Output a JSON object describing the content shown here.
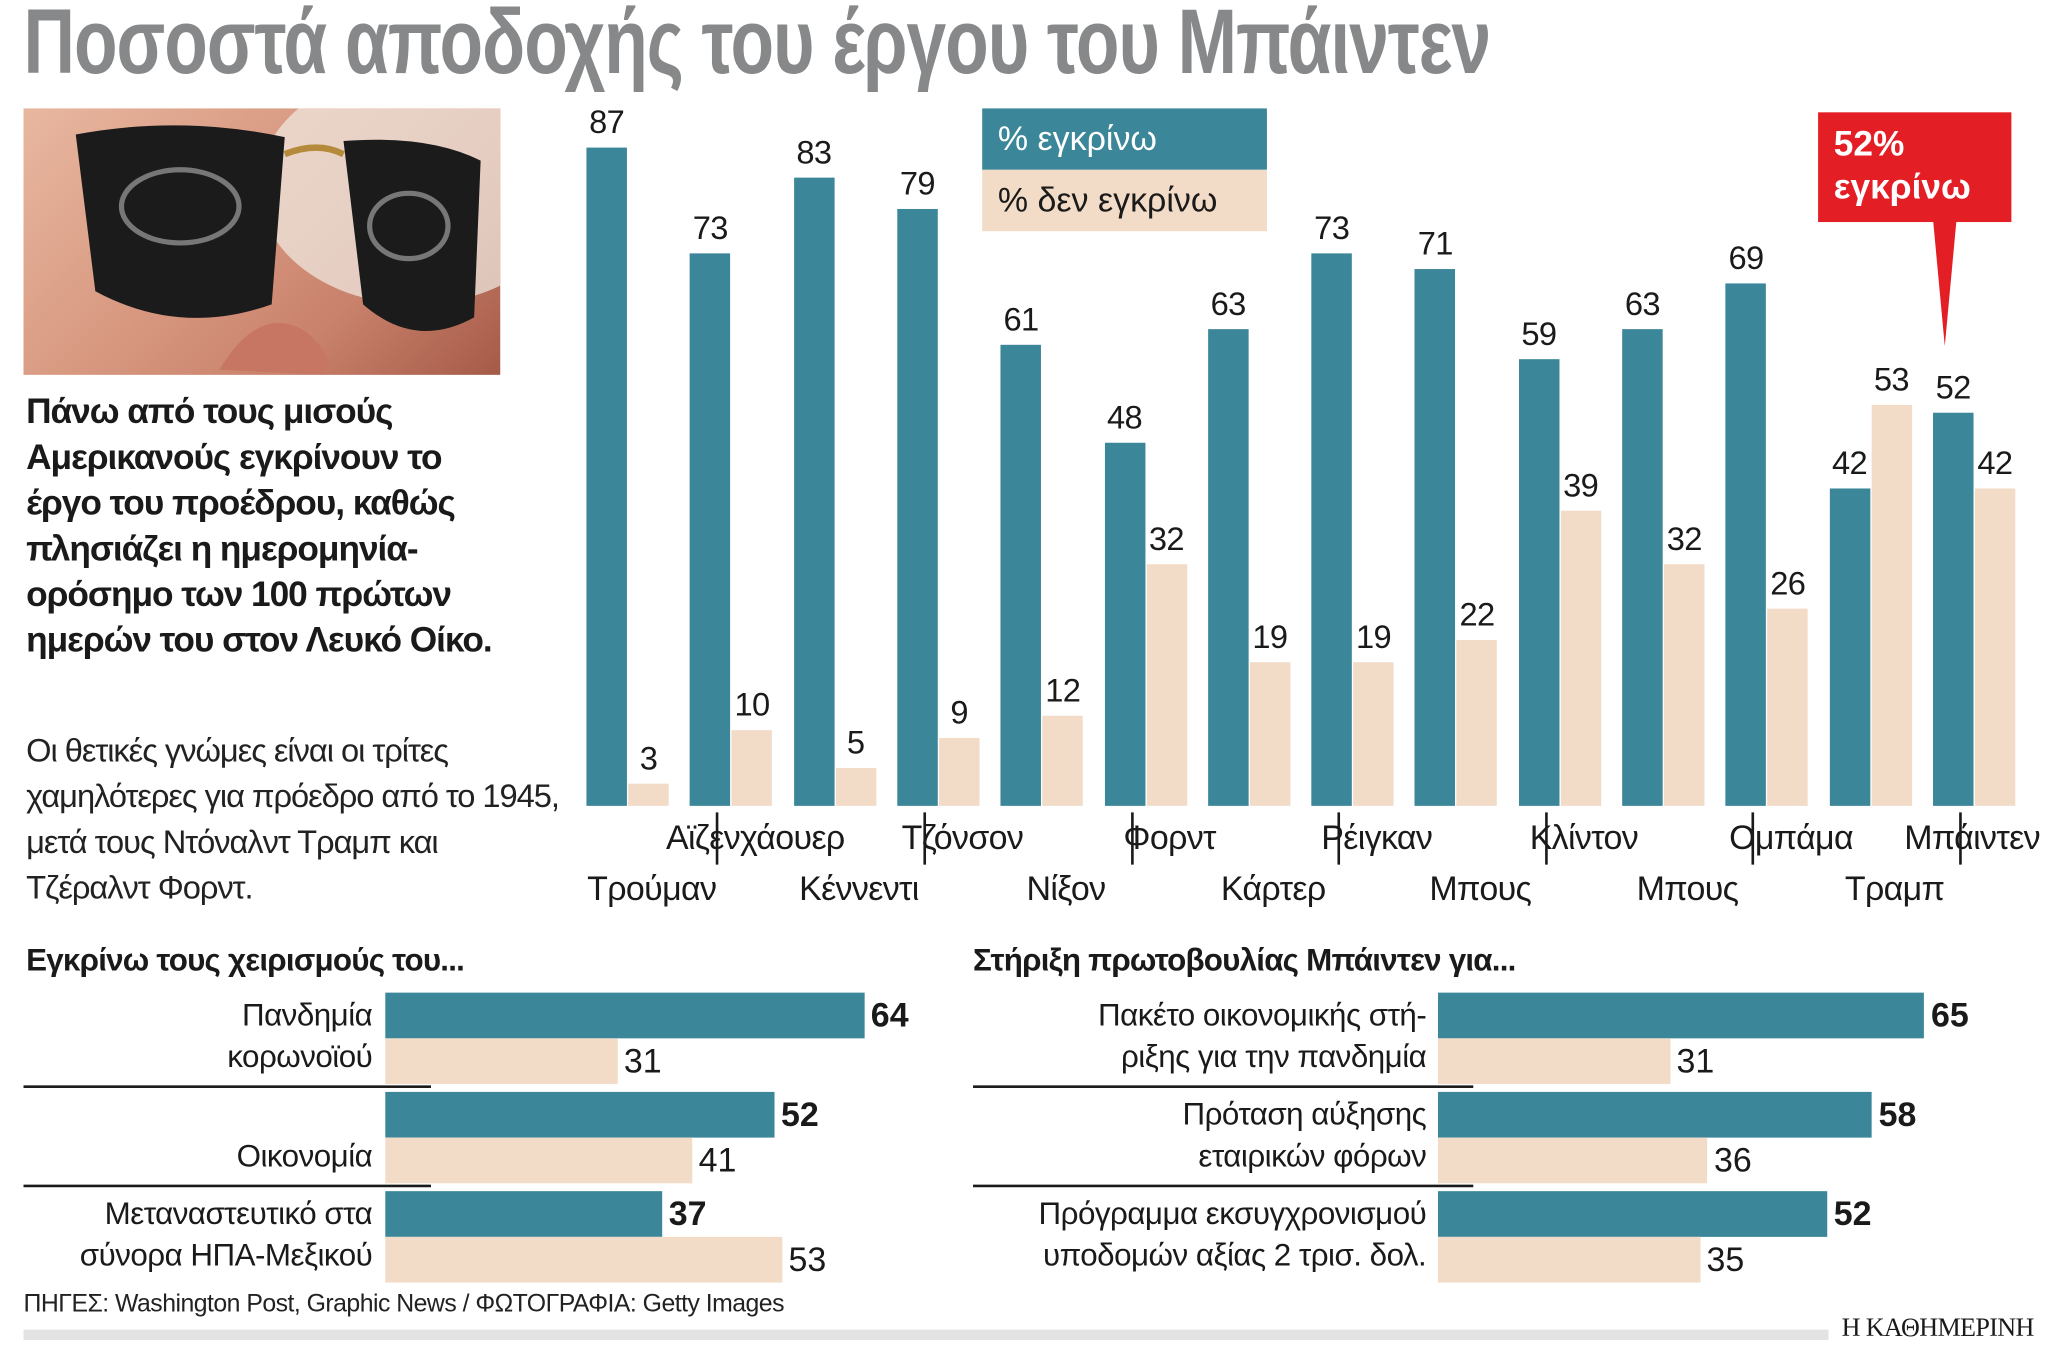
{
  "title": "Ποσοστά αποδοχής του έργου του Μπάιντεν",
  "lead": "Πάνω από τους μισούς Αμερικανούς εγκρίνουν το έργο του προέδρου, καθώς πλησιάζει η ημερομηνία-ορόσημο των 100 πρώτων ημερών του στον Λευκό Οίκο.",
  "description": "Οι θετικές γνώμες είναι οι τρίτες χαμηλότερες για πρόεδρο από το 1945, μετά τους Ντόναλντ Τραμπ και Τζέραλντ Φορντ.",
  "callout": {
    "line1": "52%",
    "line2": "εγκρίνω"
  },
  "colors": {
    "approve": "#3b8698",
    "disapprove": "#f2dcc8",
    "callout": "#e31e24",
    "title": "#87888a"
  },
  "chart_data": [
    {
      "type": "bar",
      "categories": [
        "Τρούμαν",
        "Αϊζενχάουερ",
        "Κέννεντι",
        "Τζόνσον",
        "Νίξον",
        "Φορντ",
        "Κάρτερ",
        "Ρέιγκαν",
        "Μπους",
        "Κλίντον",
        "Μπους",
        "Ομπάμα",
        "Τραμπ",
        "Μπάιντεν"
      ],
      "series": [
        {
          "name": "% εγκρίνω",
          "values": [
            87,
            73,
            83,
            79,
            61,
            48,
            63,
            73,
            71,
            59,
            63,
            69,
            42,
            52
          ]
        },
        {
          "name": "% δεν εγκρίνω",
          "values": [
            3,
            10,
            5,
            9,
            12,
            32,
            19,
            19,
            22,
            39,
            32,
            26,
            53,
            42
          ]
        }
      ],
      "ylim": [
        0,
        90
      ],
      "grid": false,
      "legend": "top-center"
    },
    {
      "type": "bar",
      "orientation": "horizontal",
      "title": "Εγκρίνω τους χειρισμούς του...",
      "categories": [
        "Πανδημία κορωνοϊού",
        "Οικονομία",
        "Μεταναστευτικό στα σύνορα ΗΠΑ-Μεξικού"
      ],
      "category_lines": [
        [
          "Πανδημία",
          "κορωνοϊού"
        ],
        [
          "",
          "Οικονομία"
        ],
        [
          "Μεταναστευτικό στα",
          "σύνορα ΗΠΑ-Μεξικού"
        ]
      ],
      "series": [
        {
          "values": [
            64,
            52,
            37
          ]
        },
        {
          "values": [
            31,
            41,
            53
          ]
        }
      ]
    },
    {
      "type": "bar",
      "orientation": "horizontal",
      "title": "Στήριξη πρωτοβουλίας Μπάιντεν για...",
      "categories": [
        "Πακέτο οικονομικής στήριξης για την πανδημία",
        "Πρόταση αύξησης εταιρικών φόρων",
        "Πρόγραμμα εκσυγχρονισμού υποδομών αξίας 2 τρισ. δολ."
      ],
      "category_lines": [
        [
          "Πακέτο οικονομικής στή-",
          "ριξης για την πανδημία"
        ],
        [
          "Πρόταση αύξησης",
          "εταιρικών φόρων"
        ],
        [
          "Πρόγραμμα εκσυγχρονισμού",
          "υποδομών αξίας 2 τρισ. δολ."
        ]
      ],
      "series": [
        {
          "values": [
            65,
            58,
            52
          ]
        },
        {
          "values": [
            31,
            36,
            35
          ]
        }
      ]
    }
  ],
  "source": "ΠΗΓΕΣ: Washington Post, Graphic News / ΦΩΤΟΓΡΑΦΙΑ: Getty Images",
  "logo": "Η ΚΑΘΗΜΕΡΙΝΗ",
  "photo_icon": "man-with-aviator-sunglasses-photo"
}
